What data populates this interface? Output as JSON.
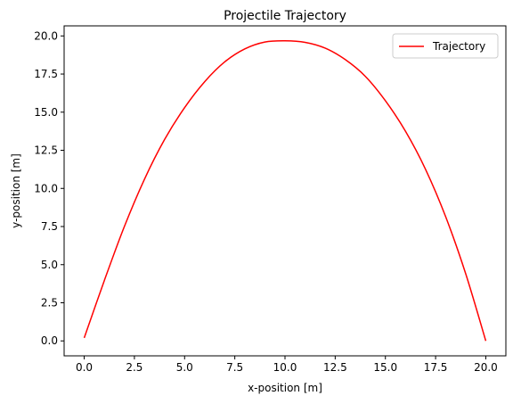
{
  "chart_data": {
    "type": "line",
    "title": "Projectile Trajectory",
    "xlabel": "x-position [m]",
    "ylabel": "y-position [m]",
    "xlim": [
      -1.0,
      21.0
    ],
    "ylim": [
      -0.98,
      20.66
    ],
    "xticks": [
      0.0,
      2.5,
      5.0,
      7.5,
      10.0,
      12.5,
      15.0,
      17.5,
      20.0
    ],
    "xtick_labels": [
      "0.0",
      "2.5",
      "5.0",
      "7.5",
      "10.0",
      "12.5",
      "15.0",
      "17.5",
      "20.0"
    ],
    "yticks": [
      0.0,
      2.5,
      5.0,
      7.5,
      10.0,
      12.5,
      15.0,
      17.5,
      20.0
    ],
    "ytick_labels": [
      "0.0",
      "2.5",
      "5.0",
      "7.5",
      "10.0",
      "12.5",
      "15.0",
      "17.5",
      "20.0"
    ],
    "grid": false,
    "legend_position": "top-right",
    "series": [
      {
        "name": "Trajectory",
        "color": "#ff0000",
        "x": [
          0.0,
          1.0,
          2.0,
          3.0,
          4.0,
          5.0,
          6.0,
          7.0,
          8.0,
          9.0,
          10.0,
          11.0,
          12.0,
          13.0,
          14.0,
          15.0,
          16.0,
          17.0,
          18.0,
          19.0,
          20.0
        ],
        "y": [
          0.2,
          3.95,
          7.5,
          10.6,
          13.2,
          15.3,
          17.0,
          18.3,
          19.15,
          19.6,
          19.68,
          19.58,
          19.2,
          18.45,
          17.35,
          15.75,
          13.75,
          11.25,
          8.15,
          4.4,
          0.0
        ]
      }
    ]
  }
}
